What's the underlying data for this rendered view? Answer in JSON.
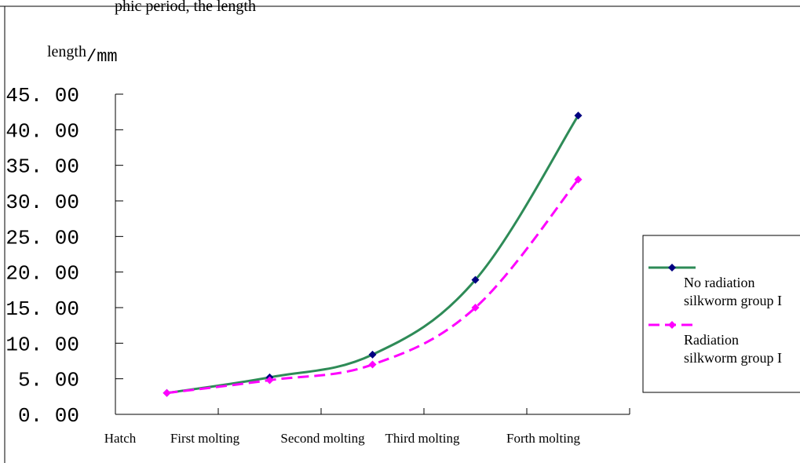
{
  "header_fragment": "phic period, the length",
  "chart_data": {
    "type": "line",
    "ylabel_main": "length",
    "ylabel_unit": "/mm",
    "categories": [
      "Hatch",
      "First molting",
      "Second molting",
      "Third molting",
      "Forth molting"
    ],
    "ylim": [
      0,
      45
    ],
    "yticks": [
      "0.00",
      "5.00",
      "10.00",
      "15.00",
      "20.00",
      "25.00",
      "30.00",
      "35.00",
      "40.00",
      "45.00"
    ],
    "series": [
      {
        "name": "No radiation silkworm group I",
        "legend_lines": [
          "No radiation",
          "silkworm group I"
        ],
        "color": "#2e8b57",
        "marker_color": "#000080",
        "dash": "",
        "values": [
          3.0,
          5.2,
          8.4,
          18.9,
          42.0
        ]
      },
      {
        "name": "Radiation silkworm group I",
        "legend_lines": [
          "Radiation",
          "silkworm group I"
        ],
        "color": "#ff00ff",
        "marker_color": "#ff00ff",
        "dash": "14,7",
        "values": [
          3.0,
          4.8,
          7.0,
          15.0,
          33.0
        ]
      }
    ],
    "grid": false,
    "legend_position": "right"
  }
}
